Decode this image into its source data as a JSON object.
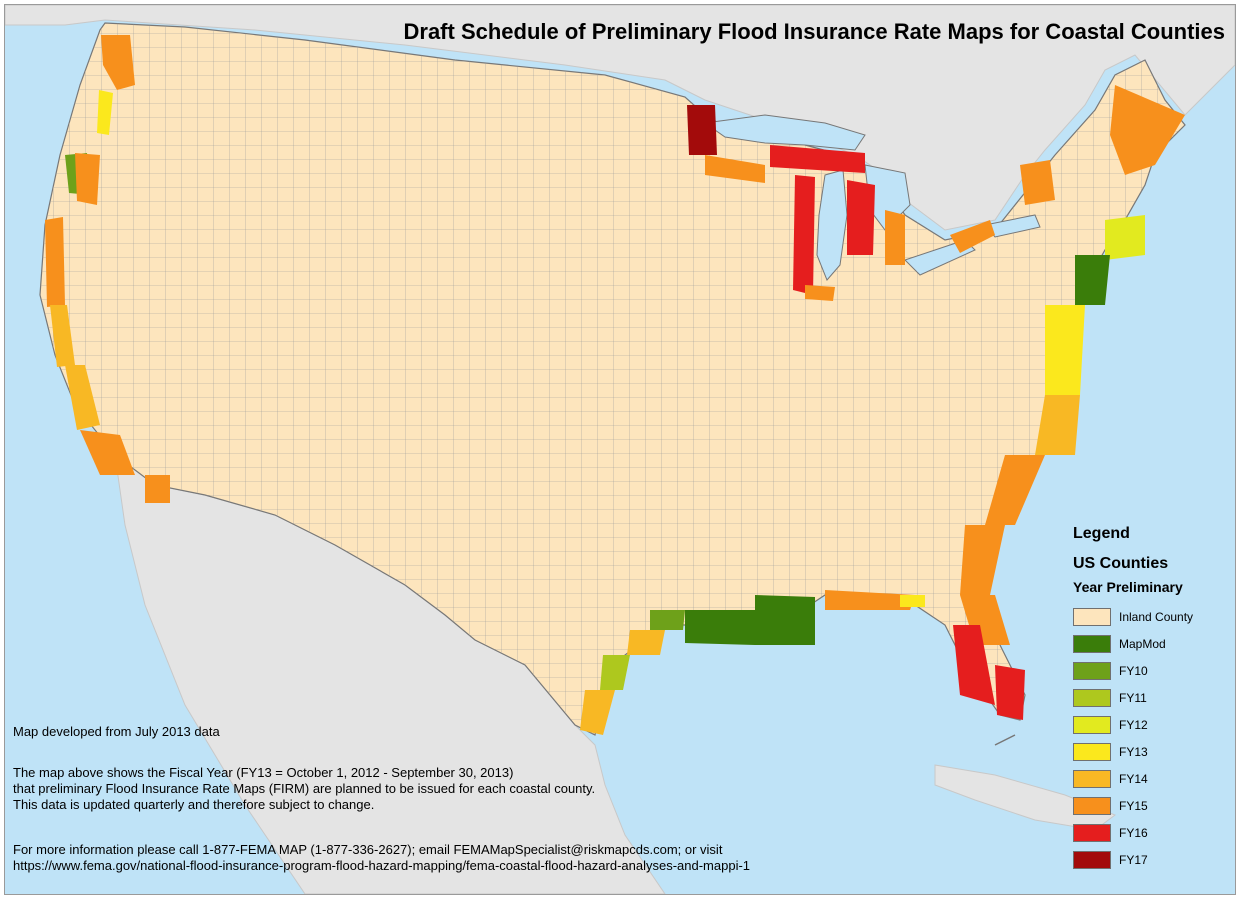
{
  "map": {
    "title": "Draft Schedule of Preliminary Flood Insurance Rate Maps for Coastal Counties",
    "credit": "Map developed from July 2013 data",
    "description": [
      "The map above shows the Fiscal Year (FY13 = October 1, 2012 - September 30, 2013)",
      "that preliminary Flood Insurance Rate Maps (FIRM) are planned to be issued for each coastal county.",
      "This data is updated quarterly and therefore subject to change."
    ],
    "contact": [
      "For more information please call 1-877-FEMA MAP (1-877-336-2627); email FEMAMapSpecialist@riskmapcds.com; or visit",
      "https://www.fema.gov/national-flood-insurance-program-flood-hazard-mapping/fema-coastal-flood-hazard-analyses-and-mappi-1"
    ],
    "colors": {
      "ocean": "#bfe3f7",
      "land_foreign": "#e4e4e4",
      "inland": "#fde5bd",
      "county_border": "#8c8c8c"
    }
  },
  "legend": {
    "title": "Legend",
    "layer": "US Counties",
    "field": "Year Preliminary",
    "items": [
      {
        "label": "Inland County",
        "color": "#fde5bd"
      },
      {
        "label": "MapMod",
        "color": "#3a7d0a"
      },
      {
        "label": "FY10",
        "color": "#6ea11a"
      },
      {
        "label": "FY11",
        "color": "#aec81e"
      },
      {
        "label": "FY12",
        "color": "#e2ea1f"
      },
      {
        "label": "FY13",
        "color": "#fbe81d"
      },
      {
        "label": "FY14",
        "color": "#f8b824"
      },
      {
        "label": "FY15",
        "color": "#f7901c"
      },
      {
        "label": "FY16",
        "color": "#e51e1e"
      },
      {
        "label": "FY17",
        "color": "#a30b0b"
      }
    ]
  }
}
